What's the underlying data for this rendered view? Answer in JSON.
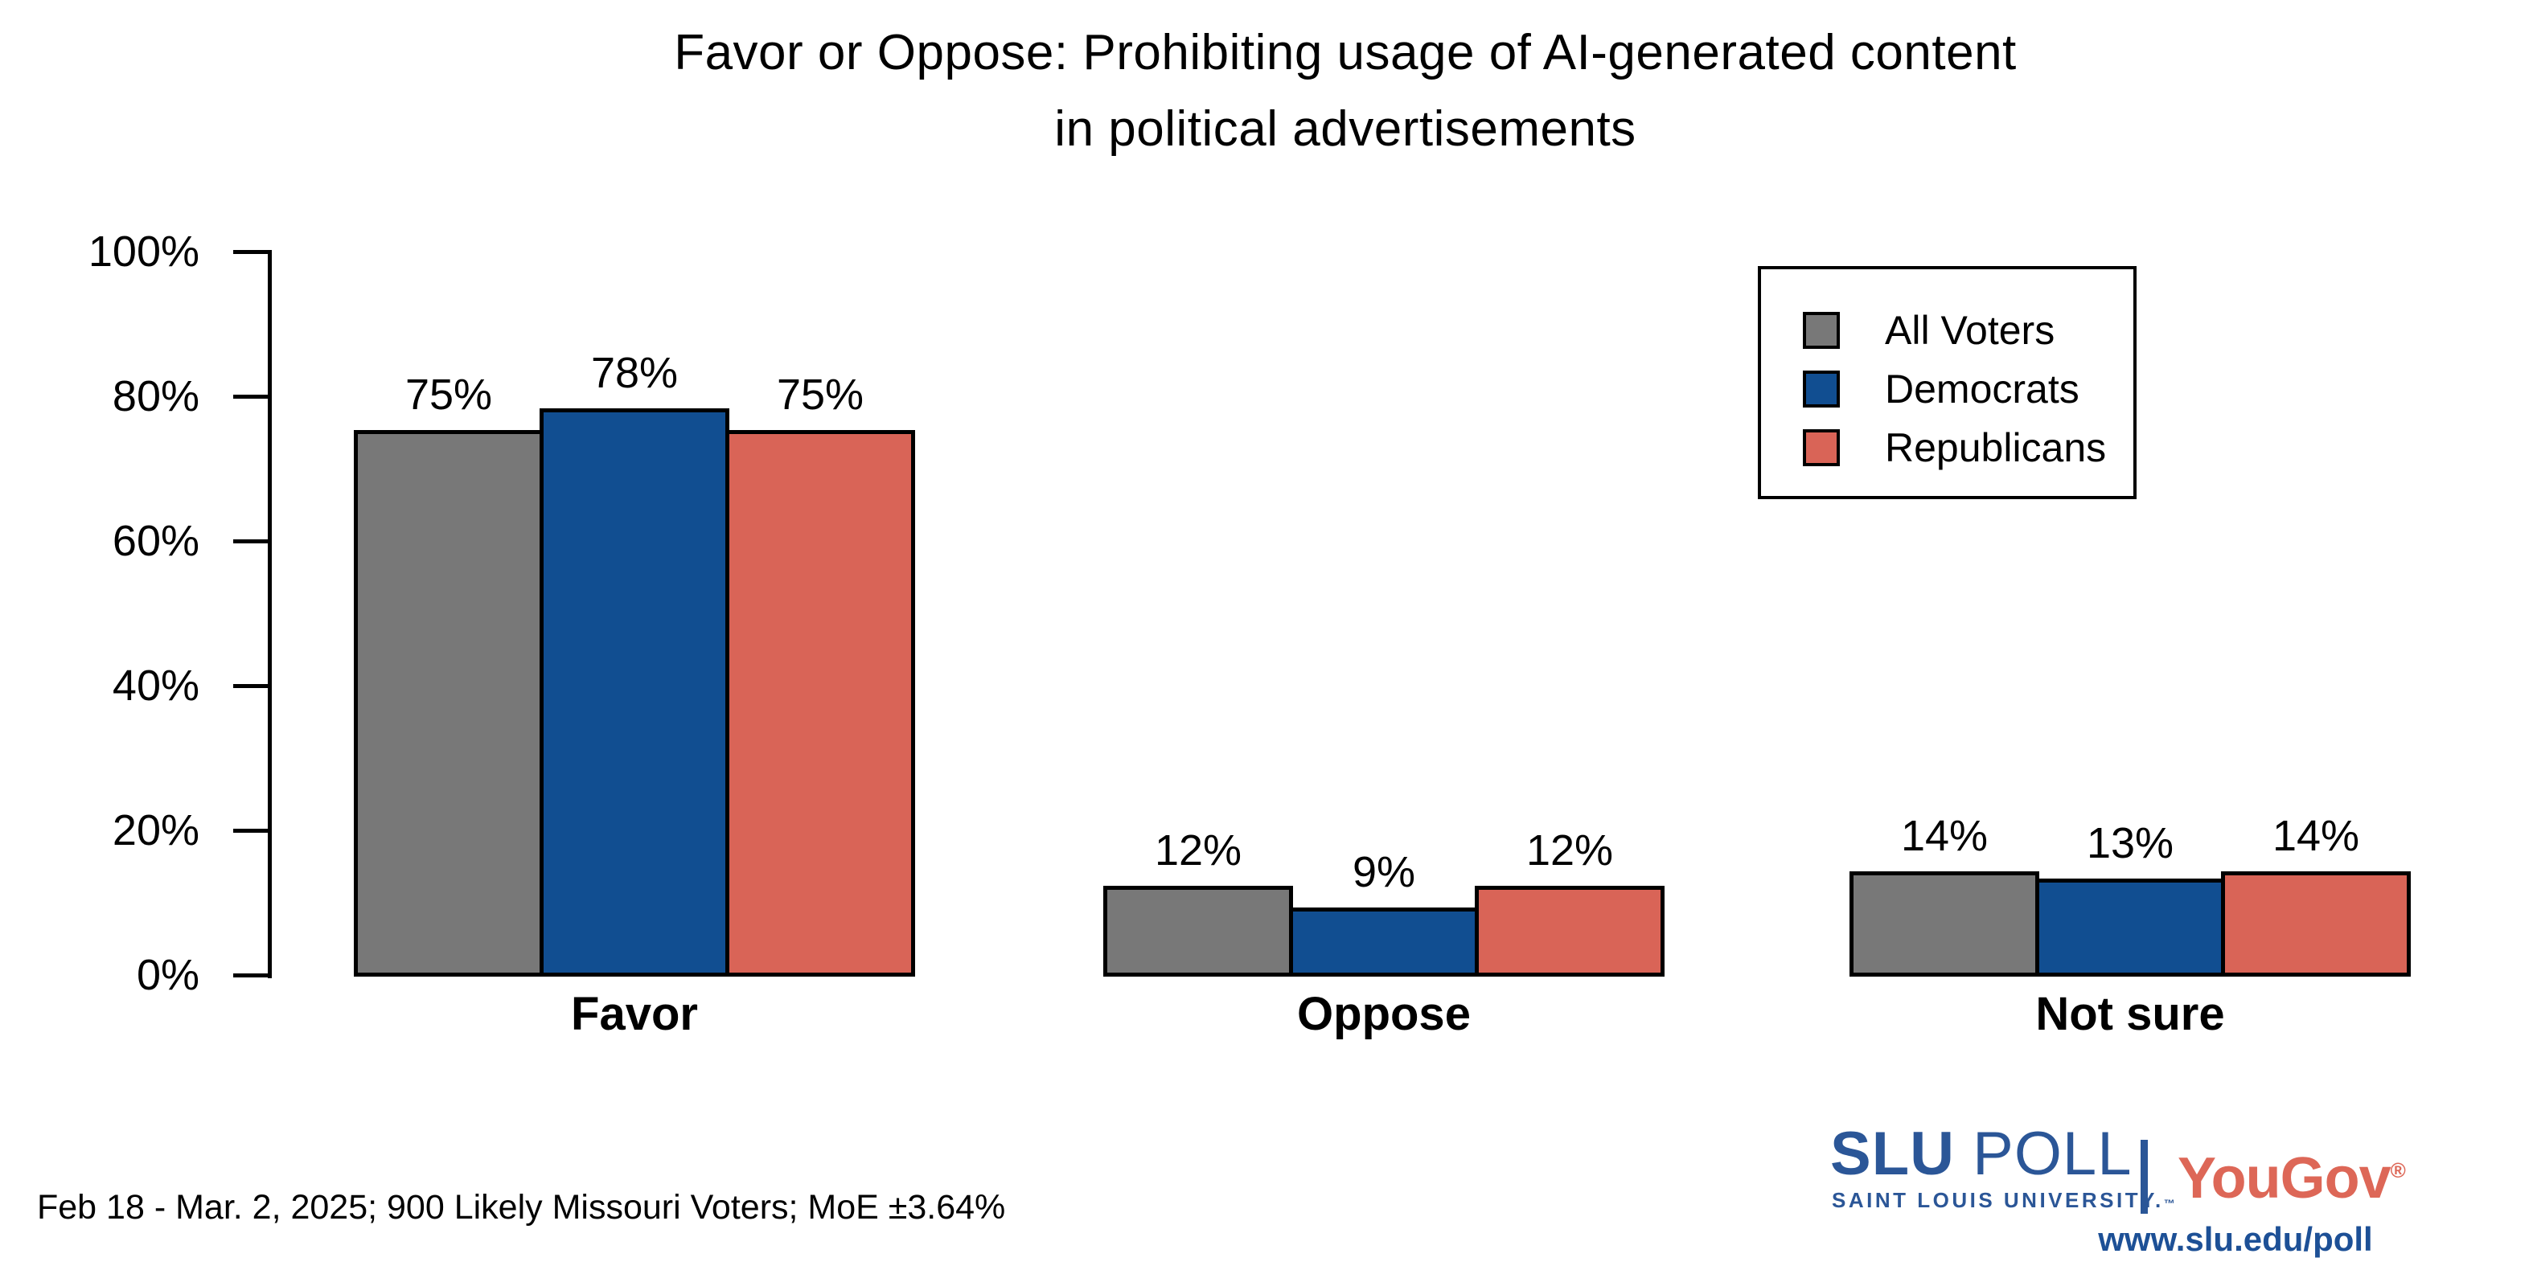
{
  "chart_data": {
    "type": "bar",
    "title": "Favor or Oppose: Prohibiting usage of AI-generated content in political advertisements",
    "title_lines": [
      "Favor or Oppose: Prohibiting usage of AI-generated content",
      "in political advertisements"
    ],
    "categories": [
      "Favor",
      "Oppose",
      "Not sure"
    ],
    "series": [
      {
        "name": "All Voters",
        "color": "#787878",
        "values": [
          75,
          12,
          14
        ]
      },
      {
        "name": "Democrats",
        "color": "#114e91",
        "values": [
          78,
          9,
          13
        ]
      },
      {
        "name": "Republicans",
        "color": "#d96457",
        "values": [
          75,
          12,
          14
        ]
      }
    ],
    "value_suffix": "%",
    "xlabel": "",
    "ylabel": "",
    "ylim": [
      0,
      100
    ],
    "yticks": [
      "0%",
      "20%",
      "40%",
      "60%",
      "80%",
      "100%"
    ],
    "grid": false,
    "legend_position": "top-right",
    "bar_border_color": "#000000"
  },
  "footer": {
    "note": "Feb 18 - Mar. 2, 2025; 900 Likely Missouri Voters; MoE ±3.64%"
  },
  "branding": {
    "slu_wordmark_bold": "SLU",
    "slu_wordmark_light": "POLL",
    "slu_subtitle": "SAINT LOUIS UNIVERSITY.",
    "slu_tm": "™",
    "partner_name": "YouGov",
    "partner_reg": "®",
    "url": "www.slu.edu/poll",
    "slu_color": "#2b5697",
    "partner_color": "#dd6757",
    "url_color": "#1d5096"
  }
}
